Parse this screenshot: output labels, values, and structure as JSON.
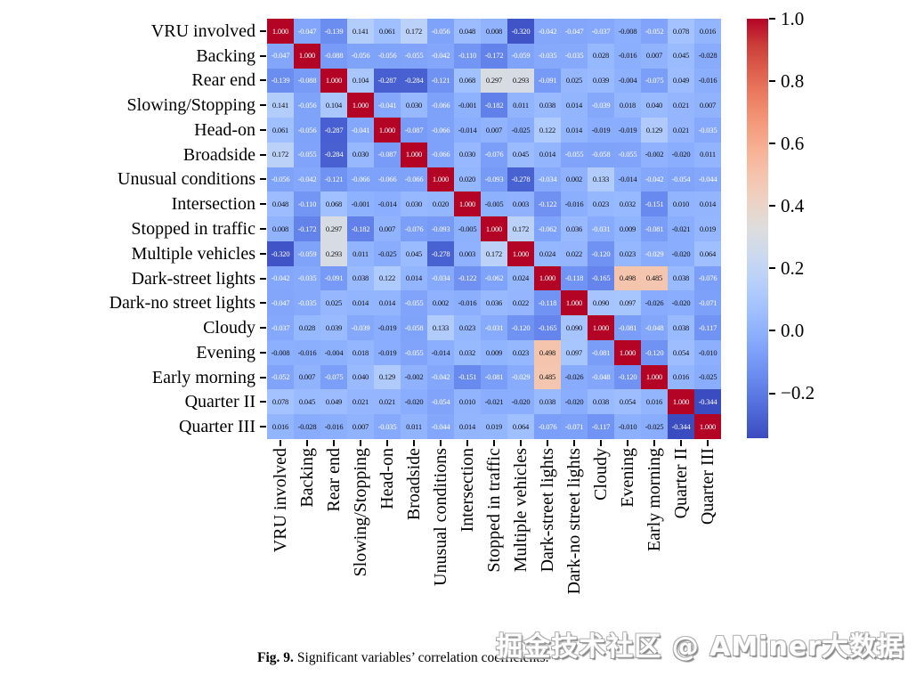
{
  "figure": {
    "caption_label": "Fig. 9.",
    "caption_text": "Significant variables’ correlation coefficients."
  },
  "watermark": {
    "text": "掘金技术社区 @ AMiner大数据"
  },
  "chart_data": {
    "type": "heatmap",
    "title": "Significant variables’ correlation coefficients",
    "xlabel": "",
    "ylabel": "",
    "categories": [
      "VRU involved",
      "Backing",
      "Rear end",
      "Slowing/Stopping",
      "Head-on",
      "Broadside",
      "Unusual conditions",
      "Intersection",
      "Stopped in traffic",
      "Multiple vehicles",
      "Dark-street lights",
      "Dark-no street lights",
      "Cloudy",
      "Evening",
      "Early morning",
      "Quarter II",
      "Quarter III"
    ],
    "matrix": [
      [
        1.0,
        -0.047,
        -0.139,
        0.141,
        0.061,
        0.172,
        -0.056,
        0.048,
        0.008,
        -0.32,
        -0.042,
        -0.047,
        -0.037,
        -0.008,
        -0.052,
        0.078,
        0.016
      ],
      [
        -0.047,
        1.0,
        -0.088,
        -0.056,
        -0.056,
        -0.055,
        -0.042,
        -0.11,
        -0.172,
        -0.059,
        -0.035,
        -0.035,
        0.028,
        -0.016,
        0.007,
        0.045,
        -0.028
      ],
      [
        -0.139,
        -0.088,
        1.0,
        0.104,
        -0.287,
        -0.284,
        -0.121,
        0.068,
        0.297,
        0.293,
        -0.091,
        0.025,
        0.039,
        -0.004,
        -0.075,
        0.049,
        -0.016
      ],
      [
        0.141,
        -0.056,
        0.104,
        1.0,
        -0.041,
        0.03,
        -0.066,
        -0.001,
        -0.182,
        0.011,
        0.038,
        0.014,
        -0.039,
        0.018,
        0.04,
        0.021,
        0.007
      ],
      [
        0.061,
        -0.056,
        -0.287,
        -0.041,
        1.0,
        -0.087,
        -0.066,
        -0.014,
        0.007,
        -0.025,
        0.122,
        0.014,
        -0.019,
        -0.019,
        0.129,
        0.021,
        -0.035
      ],
      [
        0.172,
        -0.055,
        -0.284,
        0.03,
        -0.087,
        1.0,
        -0.066,
        0.03,
        -0.076,
        0.045,
        0.014,
        -0.055,
        -0.058,
        -0.055,
        -0.002,
        -0.02,
        0.011
      ],
      [
        -0.056,
        -0.042,
        -0.121,
        -0.066,
        -0.066,
        -0.066,
        1.0,
        0.02,
        -0.093,
        -0.278,
        -0.034,
        0.002,
        0.133,
        -0.014,
        -0.042,
        -0.054,
        -0.044
      ],
      [
        0.048,
        -0.11,
        0.068,
        -0.001,
        -0.014,
        0.03,
        0.02,
        1.0,
        -0.005,
        0.003,
        -0.122,
        -0.016,
        0.023,
        0.032,
        -0.151,
        0.01,
        0.014
      ],
      [
        0.008,
        -0.172,
        0.297,
        -0.182,
        0.007,
        -0.076,
        -0.093,
        -0.005,
        1.0,
        0.172,
        -0.062,
        0.036,
        -0.031,
        0.009,
        -0.081,
        -0.021,
        0.019
      ],
      [
        -0.32,
        -0.059,
        0.293,
        0.011,
        -0.025,
        0.045,
        -0.278,
        0.003,
        0.172,
        1.0,
        0.024,
        0.022,
        -0.12,
        0.023,
        -0.029,
        -0.02,
        0.064
      ],
      [
        -0.042,
        -0.035,
        -0.091,
        0.038,
        0.122,
        0.014,
        -0.034,
        -0.122,
        -0.062,
        0.024,
        1.0,
        -0.118,
        -0.165,
        0.498,
        0.485,
        0.038,
        -0.076
      ],
      [
        -0.047,
        -0.035,
        0.025,
        0.014,
        0.014,
        -0.055,
        0.002,
        -0.016,
        0.036,
        0.022,
        -0.118,
        1.0,
        0.09,
        0.097,
        -0.026,
        -0.02,
        -0.071
      ],
      [
        -0.037,
        0.028,
        0.039,
        -0.039,
        -0.019,
        -0.058,
        0.133,
        0.023,
        -0.031,
        -0.12,
        -0.165,
        0.09,
        1.0,
        -0.081,
        -0.048,
        0.038,
        -0.117
      ],
      [
        -0.008,
        -0.016,
        -0.004,
        0.018,
        -0.019,
        -0.055,
        -0.014,
        0.032,
        0.009,
        0.023,
        0.498,
        0.097,
        -0.081,
        1.0,
        -0.12,
        0.054,
        -0.01
      ],
      [
        -0.052,
        0.007,
        -0.075,
        0.04,
        0.129,
        -0.002,
        -0.042,
        -0.151,
        -0.081,
        -0.029,
        0.485,
        -0.026,
        -0.048,
        -0.12,
        1.0,
        0.016,
        -0.025
      ],
      [
        0.078,
        0.045,
        0.049,
        0.021,
        0.021,
        -0.02,
        -0.054,
        0.01,
        -0.021,
        -0.02,
        0.038,
        -0.02,
        0.038,
        0.054,
        0.016,
        1.0,
        -0.344
      ],
      [
        0.016,
        -0.028,
        -0.016,
        0.007,
        -0.035,
        0.011,
        -0.044,
        0.014,
        0.019,
        0.064,
        -0.076,
        -0.071,
        -0.117,
        -0.01,
        -0.025,
        -0.344,
        1.0
      ]
    ],
    "vmin": -0.344,
    "vmax": 1.0,
    "cell_value_decimals": 3,
    "colormap": "coolwarm",
    "colormap_stops": [
      [
        0.0,
        "#3b4cc0"
      ],
      [
        0.0625,
        "#4d68d7"
      ],
      [
        0.125,
        "#6282ea"
      ],
      [
        0.1875,
        "#779af7"
      ],
      [
        0.25,
        "#8db0fe"
      ],
      [
        0.3125,
        "#a3c2ff"
      ],
      [
        0.375,
        "#b8d0f9"
      ],
      [
        0.4375,
        "#ccd9ee"
      ],
      [
        0.5,
        "#dddddd"
      ],
      [
        0.5625,
        "#ecd3c5"
      ],
      [
        0.625,
        "#f5c4ad"
      ],
      [
        0.6875,
        "#f7b194"
      ],
      [
        0.75,
        "#f49a7b"
      ],
      [
        0.8125,
        "#ec7f63"
      ],
      [
        0.875,
        "#de604d"
      ],
      [
        0.9375,
        "#cb3e38"
      ],
      [
        1.0,
        "#b40426"
      ]
    ],
    "annotation_colors": {
      "dark_text": "#101010",
      "light_text": "#ffffff",
      "light_if_value_at_most": -0.0285,
      "light_if_value_at_least": 0.9
    },
    "colorbar_ticks": [
      {
        "value": 1.0,
        "label": "1.0"
      },
      {
        "value": 0.8,
        "label": "0.8"
      },
      {
        "value": 0.6,
        "label": "0.6"
      },
      {
        "value": 0.4,
        "label": "0.4"
      },
      {
        "value": 0.2,
        "label": "0.2"
      },
      {
        "value": 0.0,
        "label": "0.0"
      },
      {
        "value": -0.2,
        "label": "−0.2"
      }
    ],
    "legend_position": "right",
    "grid": false
  }
}
